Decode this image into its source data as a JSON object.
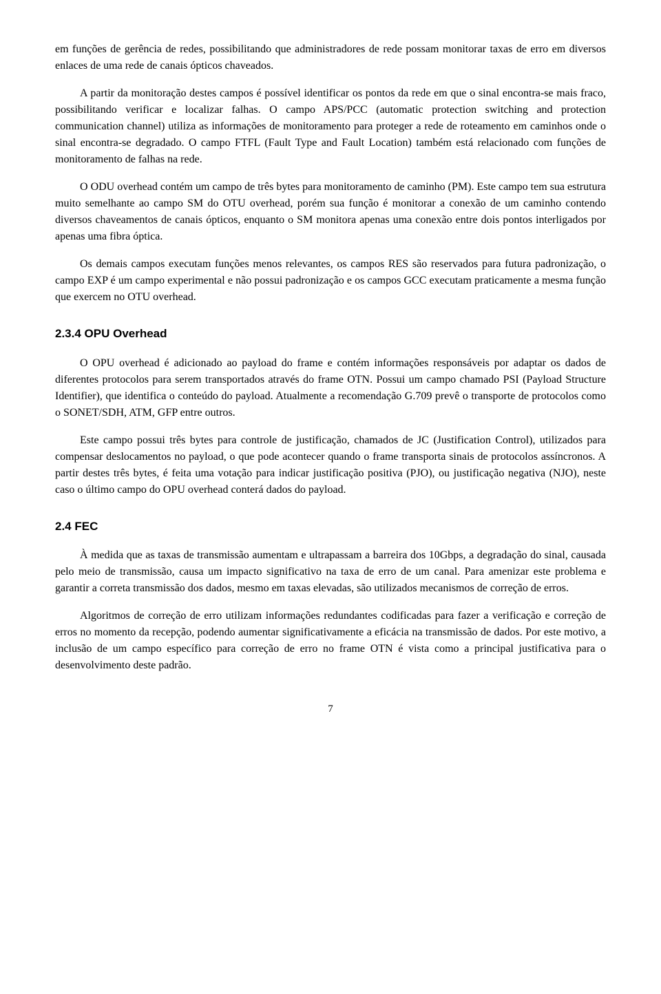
{
  "paragraphs": {
    "p1": "em funções de gerência de redes, possibilitando que administradores de rede possam monitorar taxas de erro em diversos enlaces de uma rede de canais ópticos chaveados.",
    "p2": "A partir da monitoração destes campos é possível identificar os pontos da rede em que o sinal encontra-se mais fraco, possibilitando verificar e localizar falhas. O campo APS/PCC (automatic protection switching and protection communication channel) utiliza as informações de monitoramento para proteger a rede de roteamento em caminhos onde o sinal encontra-se degradado. O campo FTFL (Fault Type and Fault Location) também está relacionado com funções de monitoramento de falhas na rede.",
    "p3": "O ODU overhead contém um campo de três bytes para monitoramento de caminho (PM). Este campo tem sua estrutura muito semelhante ao campo SM do OTU overhead, porém sua função é monitorar a conexão de um caminho contendo diversos chaveamentos de canais ópticos, enquanto o SM monitora apenas uma conexão entre dois pontos interligados por apenas uma fibra óptica.",
    "p4": "Os demais campos executam funções menos relevantes, os campos RES são reservados para futura padronização, o campo EXP é um campo experimental e não possui padronização e os campos GCC executam praticamente a mesma função que exercem no OTU overhead.",
    "p5": "O OPU overhead é adicionado ao payload do frame e contém informações responsáveis por adaptar os dados de diferentes protocolos para serem transportados através do frame OTN. Possui um campo chamado PSI (Payload Structure Identifier), que identifica o conteúdo do payload. Atualmente a recomendação G.709 prevê o transporte de protocolos como o SONET/SDH, ATM, GFP entre outros.",
    "p6": "Este campo possui três bytes para controle de justificação, chamados de JC (Justification Control), utilizados para compensar deslocamentos no payload, o que pode acontecer quando o frame transporta sinais de protocolos assíncronos. A partir destes três bytes, é feita uma votação para indicar justificação positiva (PJO), ou justificação negativa (NJO), neste caso o último campo do OPU overhead conterá dados do payload.",
    "p7": "À medida que as taxas de transmissão aumentam e ultrapassam a barreira dos 10Gbps, a degradação do sinal, causada pelo meio de transmissão, causa um impacto significativo na taxa de erro de um canal. Para amenizar este problema e garantir a correta transmissão dos dados, mesmo em taxas elevadas, são utilizados mecanismos de correção de erros.",
    "p8": "Algoritmos de correção de erro utilizam informações redundantes codificadas para fazer a verificação e correção de erros no momento da recepção, podendo aumentar significativamente a eficácia na transmissão de dados. Por este motivo, a inclusão de um campo específico para correção de erro no frame OTN é vista como a principal justificativa para o desenvolvimento deste padrão."
  },
  "headings": {
    "h234": "2.3.4  OPU Overhead",
    "h24": "2.4   FEC"
  },
  "pageNumber": "7"
}
